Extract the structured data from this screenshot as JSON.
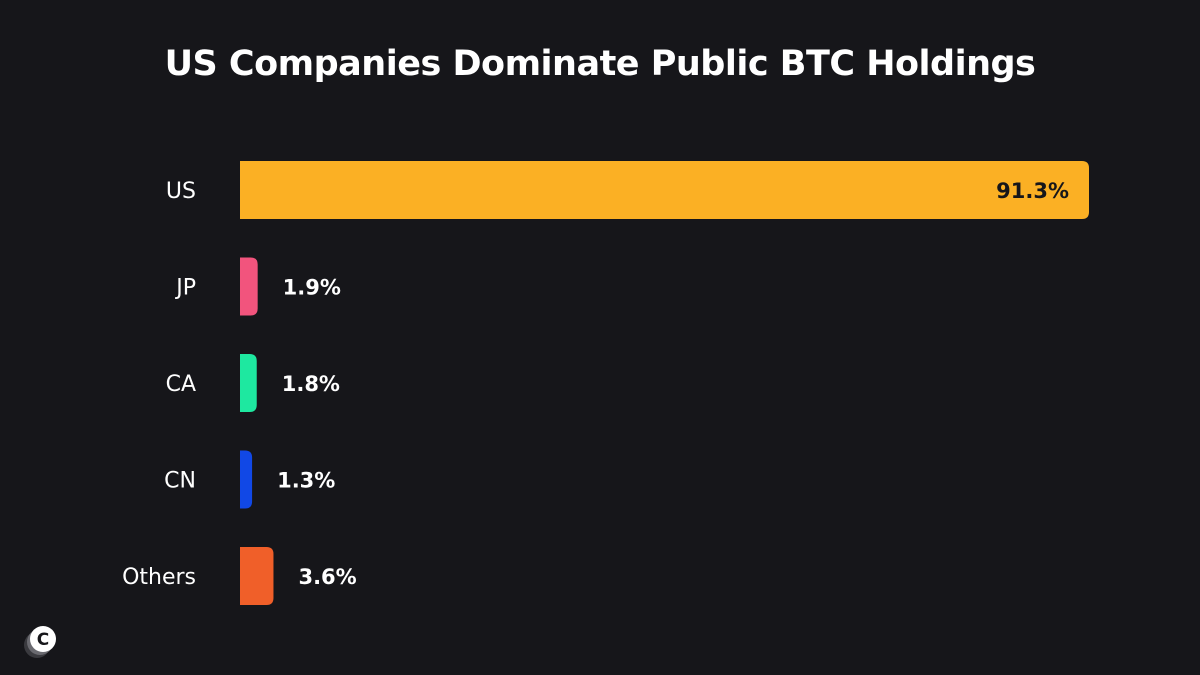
{
  "chart_data": {
    "type": "bar",
    "orientation": "horizontal",
    "title": "US Companies Dominate Public BTC Holdings",
    "categories": [
      "US",
      "JP",
      "CA",
      "CN",
      "Others"
    ],
    "values": [
      91.3,
      1.9,
      1.8,
      1.3,
      3.6
    ],
    "value_labels": [
      "91.3%",
      "1.9%",
      "1.8%",
      "1.3%",
      "3.6%"
    ],
    "unit": "%",
    "colors": [
      "#fbb024",
      "#f2547d",
      "#1ee8a0",
      "#1148e6",
      "#f05f29"
    ],
    "xlim": [
      0,
      91.3
    ],
    "grid": false,
    "legend": "none"
  },
  "logo": {
    "icon": "coin-c-logo-icon",
    "letter": "C"
  }
}
